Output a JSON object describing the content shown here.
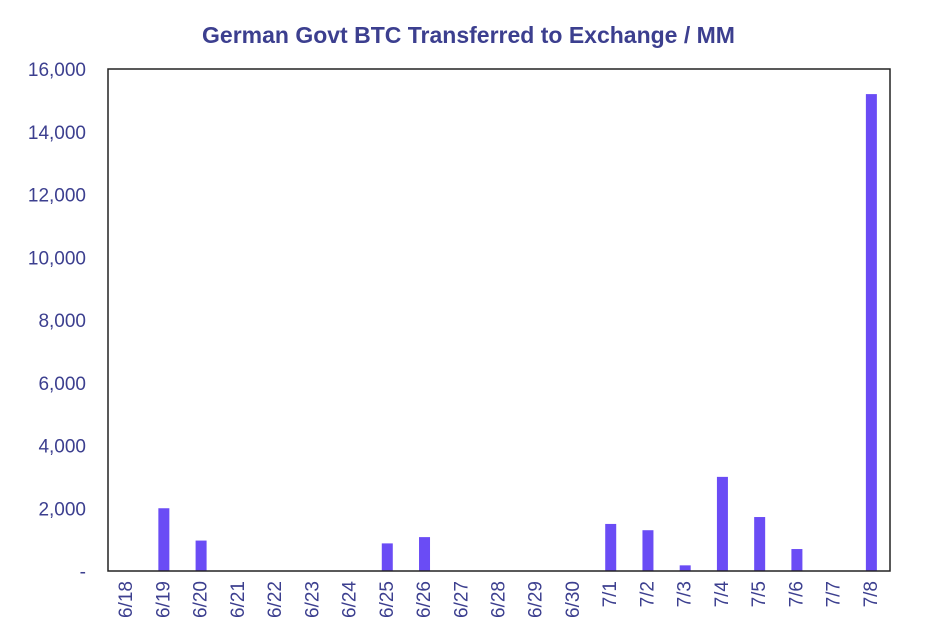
{
  "chart_data": {
    "type": "bar",
    "title": "German Govt BTC Transferred to Exchange / MM",
    "xlabel": "",
    "ylabel": "",
    "categories": [
      "6/18",
      "6/19",
      "6/20",
      "6/21",
      "6/22",
      "6/23",
      "6/24",
      "6/25",
      "6/26",
      "6/27",
      "6/28",
      "6/29",
      "6/30",
      "7/1",
      "7/2",
      "7/3",
      "7/4",
      "7/5",
      "7/6",
      "7/7",
      "7/8"
    ],
    "values": [
      0,
      2000,
      970,
      0,
      0,
      0,
      0,
      880,
      1080,
      0,
      0,
      0,
      0,
      1500,
      1300,
      180,
      3000,
      1720,
      700,
      0,
      15200
    ],
    "ylim": [
      0,
      16000
    ],
    "yticks": [
      0,
      2000,
      4000,
      6000,
      8000,
      10000,
      12000,
      14000,
      16000
    ],
    "ytick_labels": [
      "-",
      "2,000",
      "4,000",
      "6,000",
      "8,000",
      "10,000",
      "12,000",
      "14,000",
      "16,000"
    ],
    "grid": false,
    "legend": "none",
    "colors": {
      "bar": "#6a4cf5",
      "text": "#3c3f8f",
      "axis": "#222222"
    }
  }
}
